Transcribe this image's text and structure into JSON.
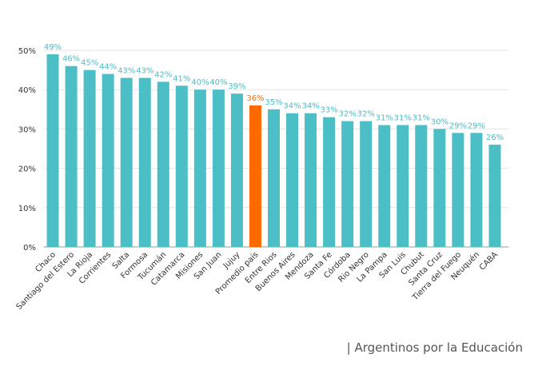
{
  "chart_data": {
    "type": "bar",
    "categories": [
      "Chaco",
      "Santiago del Estero",
      "La Rioja",
      "Corrientes",
      "Salta",
      "Formosa",
      "Tucumán",
      "Catamarca",
      "Misiones",
      "San Juan",
      "Jujuy",
      "Promedio país",
      "Entre Rios",
      "Buenos Aires",
      "Mendoza",
      "Santa Fe",
      "Córdoba",
      "Rio Negro",
      "La Pampa",
      "San Luis",
      "Chubut",
      "Santa Cruz",
      "Tierra del Fuego",
      "Neuquén",
      "CABA"
    ],
    "values": [
      49,
      46,
      45,
      44,
      43,
      43,
      42,
      41,
      40,
      40,
      39,
      36,
      35,
      34,
      34,
      33,
      32,
      32,
      31,
      31,
      31,
      30,
      29,
      29,
      26
    ],
    "value_labels": [
      "49%",
      "46%",
      "45%",
      "44%",
      "43%",
      "43%",
      "42%",
      "41%",
      "40%",
      "40%",
      "39%",
      "36%",
      "35%",
      "34%",
      "34%",
      "33%",
      "32%",
      "32%",
      "31%",
      "31%",
      "31%",
      "30%",
      "29%",
      "29%",
      "26%"
    ],
    "colors": [
      "#4bbec6",
      "#4bbec6",
      "#4bbec6",
      "#4bbec6",
      "#4bbec6",
      "#4bbec6",
      "#4bbec6",
      "#4bbec6",
      "#4bbec6",
      "#4bbec6",
      "#4bbec6",
      "#ff6a00",
      "#4bbec6",
      "#4bbec6",
      "#4bbec6",
      "#4bbec6",
      "#4bbec6",
      "#4bbec6",
      "#4bbec6",
      "#4bbec6",
      "#4bbec6",
      "#4bbec6",
      "#4bbec6",
      "#4bbec6",
      "#4bbec6"
    ],
    "ylim": [
      0,
      50
    ],
    "yticks": [
      {
        "value": 0,
        "label": "0%"
      },
      {
        "value": 10,
        "label": "10%"
      },
      {
        "value": 20,
        "label": "20%"
      },
      {
        "value": 30,
        "label": "30%"
      },
      {
        "value": 40,
        "label": "40%"
      },
      {
        "value": 50,
        "label": "50%"
      }
    ],
    "grid": true,
    "source": "| Argentinos por la Educación"
  }
}
